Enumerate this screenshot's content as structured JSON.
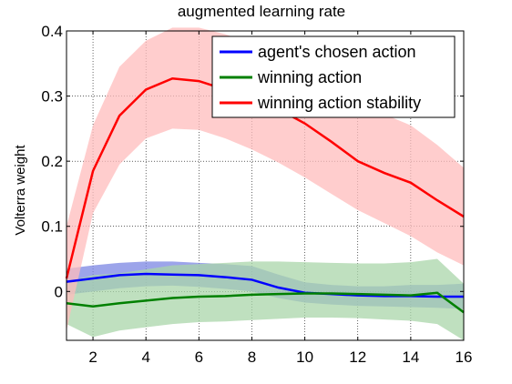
{
  "chart_data": {
    "type": "line",
    "title": "augmented learning rate",
    "xlabel": "",
    "ylabel": "Volterra weight",
    "xlim": [
      1,
      16
    ],
    "ylim": [
      -0.075,
      0.4
    ],
    "xticks": [
      2,
      4,
      6,
      8,
      10,
      12,
      14,
      16
    ],
    "yticks": [
      0,
      0.1,
      0.2,
      0.3,
      0.4
    ],
    "ytick_labels": [
      "0",
      "0.1",
      "0.2",
      "0.3",
      "0.4"
    ],
    "grid": "dotted",
    "legend_position": "top-right",
    "x": [
      1,
      2,
      3,
      4,
      5,
      6,
      7,
      8,
      9,
      10,
      11,
      12,
      13,
      14,
      15,
      16
    ],
    "series": [
      {
        "name": "agent's chosen action",
        "color": "#0000ff",
        "band_color": "#7b86e3",
        "values": [
          0.015,
          0.02,
          0.025,
          0.027,
          0.026,
          0.025,
          0.022,
          0.018,
          0.006,
          -0.002,
          -0.004,
          -0.006,
          -0.007,
          -0.007,
          -0.008,
          -0.008
        ],
        "lower": [
          -0.005,
          0.0,
          0.005,
          0.008,
          0.009,
          0.007,
          0.004,
          0.0,
          -0.01,
          -0.017,
          -0.02,
          -0.022,
          -0.023,
          -0.024,
          -0.025,
          -0.027
        ],
        "upper": [
          0.035,
          0.04,
          0.044,
          0.046,
          0.046,
          0.044,
          0.042,
          0.039,
          0.026,
          0.014,
          0.01,
          0.008,
          0.008,
          0.01,
          0.01,
          0.012
        ]
      },
      {
        "name": "winning action",
        "color": "#008000",
        "band_color": "#a9d5a9",
        "values": [
          -0.018,
          -0.023,
          -0.018,
          -0.014,
          -0.01,
          -0.008,
          -0.007,
          -0.005,
          -0.004,
          -0.003,
          -0.003,
          -0.004,
          -0.005,
          -0.006,
          -0.002,
          -0.032
        ],
        "lower": [
          -0.05,
          -0.07,
          -0.06,
          -0.055,
          -0.05,
          -0.047,
          -0.046,
          -0.044,
          -0.042,
          -0.04,
          -0.04,
          -0.041,
          -0.043,
          -0.045,
          -0.05,
          -0.075
        ],
        "upper": [
          0.015,
          0.025,
          0.028,
          0.034,
          0.04,
          0.042,
          0.044,
          0.046,
          0.046,
          0.045,
          0.044,
          0.043,
          0.043,
          0.045,
          0.05,
          0.012
        ]
      },
      {
        "name": "winning action stability",
        "color": "#ff0000",
        "band_color": "#ffbcbc",
        "values": [
          0.02,
          0.185,
          0.27,
          0.31,
          0.327,
          0.323,
          0.31,
          0.295,
          0.28,
          0.258,
          0.23,
          0.2,
          0.182,
          0.167,
          0.14,
          0.115
        ],
        "lower": [
          -0.06,
          0.12,
          0.195,
          0.235,
          0.25,
          0.248,
          0.235,
          0.218,
          0.198,
          0.175,
          0.15,
          0.125,
          0.105,
          0.085,
          0.06,
          0.04
        ],
        "upper": [
          0.1,
          0.255,
          0.345,
          0.385,
          0.405,
          0.405,
          0.395,
          0.38,
          0.365,
          0.345,
          0.32,
          0.295,
          0.272,
          0.255,
          0.225,
          0.19
        ]
      }
    ]
  }
}
